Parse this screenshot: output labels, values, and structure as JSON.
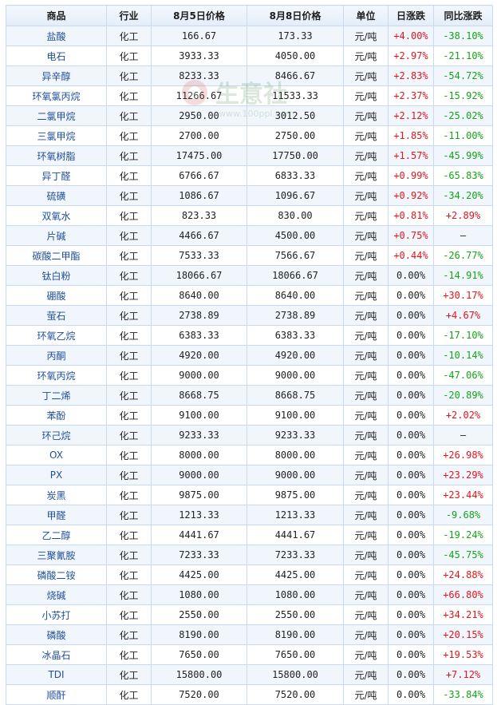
{
  "headers": {
    "name": "商品",
    "industry": "行业",
    "price_a": "8月5日价格",
    "price_b": "8月8日价格",
    "unit": "单位",
    "daily": "日涨跌",
    "yoy": "同比涨跌"
  },
  "watermark": {
    "text": "生意社",
    "url": "www.100ppi.com"
  },
  "colors": {
    "up": "#e0161c",
    "down": "#16a318",
    "header_bg": "#e3edf9",
    "border": "#c9d9ee"
  },
  "rows": [
    {
      "name": "盐酸",
      "industry": "化工",
      "price_a": "166.67",
      "price_b": "173.33",
      "unit": "元/吨",
      "daily": "+4.00%",
      "yoy": "-38.10%"
    },
    {
      "name": "电石",
      "industry": "化工",
      "price_a": "3933.33",
      "price_b": "4050.00",
      "unit": "元/吨",
      "daily": "+2.97%",
      "yoy": "-21.10%"
    },
    {
      "name": "异辛醇",
      "industry": "化工",
      "price_a": "8233.33",
      "price_b": "8466.67",
      "unit": "元/吨",
      "daily": "+2.83%",
      "yoy": "-54.72%"
    },
    {
      "name": "环氧氯丙烷",
      "industry": "化工",
      "price_a": "11266.67",
      "price_b": "11533.33",
      "unit": "元/吨",
      "daily": "+2.37%",
      "yoy": "-15.92%"
    },
    {
      "name": "二氯甲烷",
      "industry": "化工",
      "price_a": "2950.00",
      "price_b": "3012.50",
      "unit": "元/吨",
      "daily": "+2.12%",
      "yoy": "-25.02%"
    },
    {
      "name": "三氯甲烷",
      "industry": "化工",
      "price_a": "2700.00",
      "price_b": "2750.00",
      "unit": "元/吨",
      "daily": "+1.85%",
      "yoy": "-11.00%"
    },
    {
      "name": "环氧树脂",
      "industry": "化工",
      "price_a": "17475.00",
      "price_b": "17750.00",
      "unit": "元/吨",
      "daily": "+1.57%",
      "yoy": "-45.99%"
    },
    {
      "name": "异丁醛",
      "industry": "化工",
      "price_a": "6766.67",
      "price_b": "6833.33",
      "unit": "元/吨",
      "daily": "+0.99%",
      "yoy": "-65.83%"
    },
    {
      "name": "硫磺",
      "industry": "化工",
      "price_a": "1086.67",
      "price_b": "1096.67",
      "unit": "元/吨",
      "daily": "+0.92%",
      "yoy": "-34.20%"
    },
    {
      "name": "双氧水",
      "industry": "化工",
      "price_a": "823.33",
      "price_b": "830.00",
      "unit": "元/吨",
      "daily": "+0.81%",
      "yoy": "+2.89%"
    },
    {
      "name": "片碱",
      "industry": "化工",
      "price_a": "4466.67",
      "price_b": "4500.00",
      "unit": "元/吨",
      "daily": "+0.75%",
      "yoy": "—"
    },
    {
      "name": "碳酸二甲酯",
      "industry": "化工",
      "price_a": "7533.33",
      "price_b": "7566.67",
      "unit": "元/吨",
      "daily": "+0.44%",
      "yoy": "-26.77%"
    },
    {
      "name": "钛白粉",
      "industry": "化工",
      "price_a": "18066.67",
      "price_b": "18066.67",
      "unit": "元/吨",
      "daily": "0.00%",
      "yoy": "-14.91%"
    },
    {
      "name": "硼酸",
      "industry": "化工",
      "price_a": "8640.00",
      "price_b": "8640.00",
      "unit": "元/吨",
      "daily": "0.00%",
      "yoy": "+30.17%"
    },
    {
      "name": "萤石",
      "industry": "化工",
      "price_a": "2738.89",
      "price_b": "2738.89",
      "unit": "元/吨",
      "daily": "0.00%",
      "yoy": "+4.67%"
    },
    {
      "name": "环氧乙烷",
      "industry": "化工",
      "price_a": "6383.33",
      "price_b": "6383.33",
      "unit": "元/吨",
      "daily": "0.00%",
      "yoy": "-17.10%"
    },
    {
      "name": "丙酮",
      "industry": "化工",
      "price_a": "4920.00",
      "price_b": "4920.00",
      "unit": "元/吨",
      "daily": "0.00%",
      "yoy": "-10.14%"
    },
    {
      "name": "环氧丙烷",
      "industry": "化工",
      "price_a": "9000.00",
      "price_b": "9000.00",
      "unit": "元/吨",
      "daily": "0.00%",
      "yoy": "-47.06%"
    },
    {
      "name": "丁二烯",
      "industry": "化工",
      "price_a": "8668.75",
      "price_b": "8668.75",
      "unit": "元/吨",
      "daily": "0.00%",
      "yoy": "-20.89%"
    },
    {
      "name": "苯酚",
      "industry": "化工",
      "price_a": "9100.00",
      "price_b": "9100.00",
      "unit": "元/吨",
      "daily": "0.00%",
      "yoy": "+2.02%"
    },
    {
      "name": "环己烷",
      "industry": "化工",
      "price_a": "9233.33",
      "price_b": "9233.33",
      "unit": "元/吨",
      "daily": "0.00%",
      "yoy": "—"
    },
    {
      "name": "OX",
      "industry": "化工",
      "price_a": "8000.00",
      "price_b": "8000.00",
      "unit": "元/吨",
      "daily": "0.00%",
      "yoy": "+26.98%"
    },
    {
      "name": "PX",
      "industry": "化工",
      "price_a": "9000.00",
      "price_b": "9000.00",
      "unit": "元/吨",
      "daily": "0.00%",
      "yoy": "+23.29%"
    },
    {
      "name": "炭黑",
      "industry": "化工",
      "price_a": "9875.00",
      "price_b": "9875.00",
      "unit": "元/吨",
      "daily": "0.00%",
      "yoy": "+23.44%"
    },
    {
      "name": "甲醛",
      "industry": "化工",
      "price_a": "1213.33",
      "price_b": "1213.33",
      "unit": "元/吨",
      "daily": "0.00%",
      "yoy": "-9.68%"
    },
    {
      "name": "乙二醇",
      "industry": "化工",
      "price_a": "4441.67",
      "price_b": "4441.67",
      "unit": "元/吨",
      "daily": "0.00%",
      "yoy": "-19.24%"
    },
    {
      "name": "三聚氰胺",
      "industry": "化工",
      "price_a": "7233.33",
      "price_b": "7233.33",
      "unit": "元/吨",
      "daily": "0.00%",
      "yoy": "-45.75%"
    },
    {
      "name": "磷酸二铵",
      "industry": "化工",
      "price_a": "4425.00",
      "price_b": "4425.00",
      "unit": "元/吨",
      "daily": "0.00%",
      "yoy": "+24.88%"
    },
    {
      "name": "烧碱",
      "industry": "化工",
      "price_a": "1080.00",
      "price_b": "1080.00",
      "unit": "元/吨",
      "daily": "0.00%",
      "yoy": "+66.80%"
    },
    {
      "name": "小苏打",
      "industry": "化工",
      "price_a": "2550.00",
      "price_b": "2550.00",
      "unit": "元/吨",
      "daily": "0.00%",
      "yoy": "+34.21%"
    },
    {
      "name": "磷酸",
      "industry": "化工",
      "price_a": "8190.00",
      "price_b": "8190.00",
      "unit": "元/吨",
      "daily": "0.00%",
      "yoy": "+20.15%"
    },
    {
      "name": "冰晶石",
      "industry": "化工",
      "price_a": "7650.00",
      "price_b": "7650.00",
      "unit": "元/吨",
      "daily": "0.00%",
      "yoy": "+19.53%"
    },
    {
      "name": "TDI",
      "industry": "化工",
      "price_a": "15800.00",
      "price_b": "15800.00",
      "unit": "元/吨",
      "daily": "0.00%",
      "yoy": "+7.12%"
    },
    {
      "name": "顺酐",
      "industry": "化工",
      "price_a": "7520.00",
      "price_b": "7520.00",
      "unit": "元/吨",
      "daily": "0.00%",
      "yoy": "-33.84%"
    }
  ]
}
